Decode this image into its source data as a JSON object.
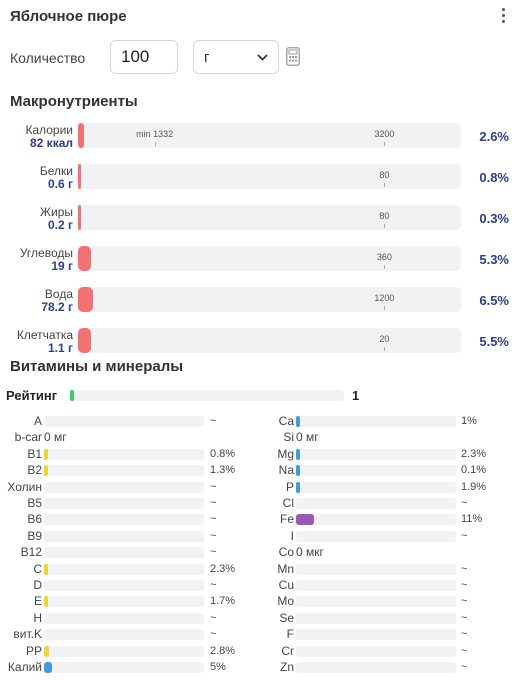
{
  "header": {
    "title": "Яблочное пюре"
  },
  "quantity": {
    "label": "Количество",
    "value": "100",
    "unit": "г"
  },
  "macros": {
    "title": "Макронутриенты",
    "items": [
      {
        "name": "Калории",
        "value": "82 ккал",
        "fraction": 0.026,
        "percent": "2.6%",
        "ticks": [
          {
            "label": "min 1332",
            "at": 0.2
          },
          {
            "label": "3200",
            "at": 0.8
          }
        ]
      },
      {
        "name": "Белки",
        "value": "0.6 г",
        "fraction": 0.008,
        "percent": "0.8%",
        "ticks": [
          {
            "label": "80",
            "at": 0.8
          }
        ]
      },
      {
        "name": "Жиры",
        "value": "0.2 г",
        "fraction": 0.003,
        "percent": "0.3%",
        "ticks": [
          {
            "label": "80",
            "at": 0.8
          }
        ]
      },
      {
        "name": "Углеводы",
        "value": "19 г",
        "fraction": 0.053,
        "percent": "5.3%",
        "ticks": [
          {
            "label": "360",
            "at": 0.8
          }
        ]
      },
      {
        "name": "Вода",
        "value": "78.2 г",
        "fraction": 0.065,
        "percent": "6.5%",
        "ticks": [
          {
            "label": "1200",
            "at": 0.8
          }
        ]
      },
      {
        "name": "Клетчатка",
        "value": "1.1 г",
        "fraction": 0.055,
        "percent": "5.5%",
        "ticks": [
          {
            "label": "20",
            "at": 0.8
          }
        ]
      }
    ]
  },
  "vitamins": {
    "title": "Витамины и минералы",
    "rating": {
      "label": "Рейтинг",
      "value": "1",
      "fraction": 0.01
    },
    "left": [
      {
        "name": "A",
        "value": "~",
        "fraction": 0,
        "color": "#f2d22e"
      },
      {
        "name": "b-car",
        "value": "0 мг",
        "inline": true
      },
      {
        "name": "B1",
        "value": "0.8%",
        "fraction": 0.008,
        "color": "#f2d22e"
      },
      {
        "name": "B2",
        "value": "1.3%",
        "fraction": 0.013,
        "color": "#f2d22e"
      },
      {
        "name": "Холин",
        "value": "~",
        "fraction": 0,
        "color": "#f2d22e"
      },
      {
        "name": "B5",
        "value": "~",
        "fraction": 0,
        "color": "#f2d22e"
      },
      {
        "name": "B6",
        "value": "~",
        "fraction": 0,
        "color": "#f2d22e"
      },
      {
        "name": "B9",
        "value": "~",
        "fraction": 0,
        "color": "#f2d22e"
      },
      {
        "name": "B12",
        "value": "~",
        "fraction": 0,
        "color": "#f2d22e"
      },
      {
        "name": "C",
        "value": "2.3%",
        "fraction": 0.023,
        "color": "#f2d22e"
      },
      {
        "name": "D",
        "value": "~",
        "fraction": 0,
        "color": "#f2d22e"
      },
      {
        "name": "E",
        "value": "1.7%",
        "fraction": 0.017,
        "color": "#f2d22e"
      },
      {
        "name": "H",
        "value": "~",
        "fraction": 0,
        "color": "#f2d22e"
      },
      {
        "name": "вит.K",
        "value": "~",
        "fraction": 0,
        "color": "#f2d22e"
      },
      {
        "name": "PP",
        "value": "2.8%",
        "fraction": 0.028,
        "color": "#f2d22e"
      },
      {
        "name": "Калий",
        "value": "5%",
        "fraction": 0.05,
        "color": "#3f9ae0"
      }
    ],
    "right": [
      {
        "name": "Ca",
        "value": "1%",
        "fraction": 0.01,
        "color": "#3f9ae0"
      },
      {
        "name": "Si",
        "value": "0 мг",
        "inline": true
      },
      {
        "name": "Mg",
        "value": "2.3%",
        "fraction": 0.023,
        "color": "#3f9ae0"
      },
      {
        "name": "Na",
        "value": "0.1%",
        "fraction": 0.001,
        "color": "#3f9ae0"
      },
      {
        "name": "P",
        "value": "1.9%",
        "fraction": 0.019,
        "color": "#3f9ae0"
      },
      {
        "name": "Cl",
        "value": "~",
        "fraction": 0,
        "color": "#3f9ae0"
      },
      {
        "name": "Fe",
        "value": "11%",
        "fraction": 0.11,
        "color": "#9b59b6"
      },
      {
        "name": "I",
        "value": "~",
        "fraction": 0,
        "color": "#3f9ae0"
      },
      {
        "name": "Co",
        "value": "0 мкг",
        "inline": true
      },
      {
        "name": "Mn",
        "value": "~",
        "fraction": 0,
        "color": "#3f9ae0"
      },
      {
        "name": "Cu",
        "value": "~",
        "fraction": 0,
        "color": "#3f9ae0"
      },
      {
        "name": "Mo",
        "value": "~",
        "fraction": 0,
        "color": "#3f9ae0"
      },
      {
        "name": "Se",
        "value": "~",
        "fraction": 0,
        "color": "#3f9ae0"
      },
      {
        "name": "F",
        "value": "~",
        "fraction": 0,
        "color": "#3f9ae0"
      },
      {
        "name": "Cr",
        "value": "~",
        "fraction": 0,
        "color": "#3f9ae0"
      },
      {
        "name": "Zn",
        "value": "~",
        "fraction": 0,
        "color": "#3f9ae0"
      }
    ]
  },
  "colors": {
    "macro_fill": "#f47173",
    "accent_text": "#2f3d8c",
    "rating_fill": "#3ec96f"
  },
  "icons": {
    "menu": "kebab-menu-icon",
    "calculator": "calculator-icon",
    "dropdown": "chevron-down-icon"
  }
}
